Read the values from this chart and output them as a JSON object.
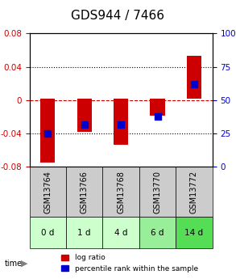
{
  "title": "GDS944 / 7466",
  "samples": [
    "GSM13764",
    "GSM13766",
    "GSM13768",
    "GSM13770",
    "GSM13772"
  ],
  "time_labels": [
    "0 d",
    "1 d",
    "4 d",
    "6 d",
    "14 d"
  ],
  "log_ratios": [
    -0.075,
    -0.038,
    -0.053,
    -0.018,
    0.053
  ],
  "log_ratio_tops": [
    0.002,
    0.002,
    0.002,
    0.002,
    0.002
  ],
  "percentile_ranks": [
    25,
    32,
    32,
    38,
    62
  ],
  "ylim_left": [
    -0.08,
    0.08
  ],
  "ylim_right": [
    0,
    100
  ],
  "bar_color": "#cc0000",
  "blue_color": "#0000cc",
  "dotted_line_color": "#cc0000",
  "grid_color": "#000000",
  "background_color": "#ffffff",
  "plot_bg": "#ffffff",
  "sample_bg": "#cccccc",
  "time_bg_colors": [
    "#ccffcc",
    "#ccffcc",
    "#ccffcc",
    "#99ee99",
    "#55dd55"
  ],
  "bar_width": 0.4,
  "blue_marker_size": 6,
  "title_fontsize": 11,
  "tick_fontsize": 7.5,
  "label_fontsize": 7,
  "legend_fontsize": 6.5,
  "yticks_left": [
    -0.08,
    -0.04,
    0,
    0.04,
    0.08
  ],
  "yticks_right": [
    0,
    25,
    50,
    75,
    100
  ],
  "yticklabels_right": [
    "0",
    "25",
    "50",
    "75",
    "100%"
  ]
}
